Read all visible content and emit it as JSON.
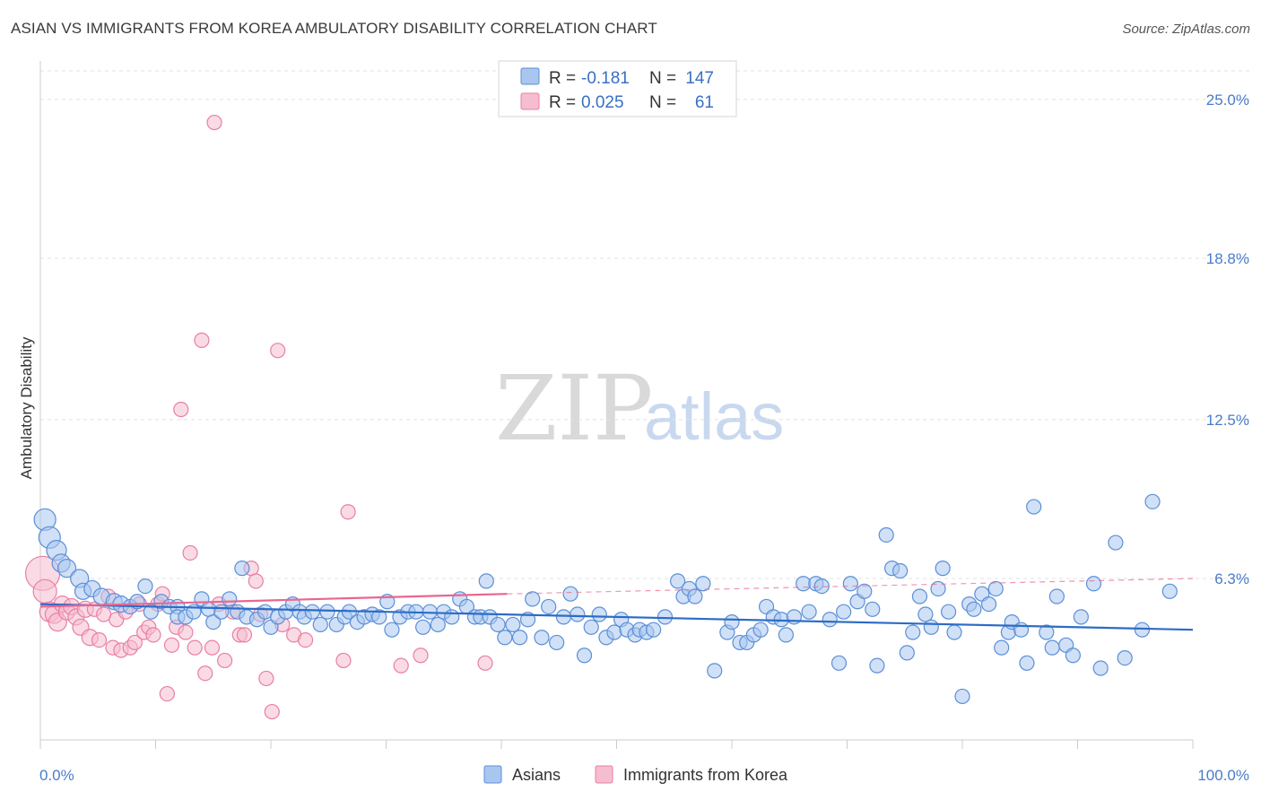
{
  "title": "ASIAN VS IMMIGRANTS FROM KOREA AMBULATORY DISABILITY CORRELATION CHART",
  "source": "Source: ZipAtlas.com",
  "watermark": {
    "zip": "ZIP",
    "atlas": "atlas"
  },
  "colors": {
    "asians_fill": "#a9c6ef",
    "asians_stroke": "#5b8fd8",
    "asians_line": "#2d6cc6",
    "korea_fill": "#f6bdd0",
    "korea_stroke": "#e87fa3",
    "korea_line": "#e8678f",
    "tick_label": "#4a7cc9",
    "grid": "#e2e2e2"
  },
  "legend": {
    "rows": [
      {
        "r_label": "R = ",
        "r_value": "-0.181",
        "n_label": "N = ",
        "n_value": "147"
      },
      {
        "r_label": "R = ",
        "r_value": "0.025",
        "n_label": "N = ",
        "n_value": "61"
      }
    ]
  },
  "bottom_legend": [
    "Asians",
    "Immigrants from Korea"
  ],
  "chart_data": {
    "type": "scatter",
    "title": "ASIAN VS IMMIGRANTS FROM KOREA AMBULATORY DISABILITY CORRELATION CHART",
    "xlabel": "",
    "ylabel": "Ambulatory Disability",
    "xlim": [
      0,
      100
    ],
    "ylim": [
      0,
      26.5
    ],
    "x_tick_labels": [
      "0.0%",
      "100.0%"
    ],
    "y_ticks": [
      6.3,
      12.5,
      18.8,
      25.0
    ],
    "y_tick_labels": [
      "6.3%",
      "12.5%",
      "18.8%",
      "25.0%"
    ],
    "grid": "horizontal dashed",
    "legend_position": "top-center",
    "series": [
      {
        "name": "Asians",
        "R": -0.181,
        "N": 147,
        "trend": {
          "x": [
            0,
            100
          ],
          "y": [
            5.3,
            4.3
          ],
          "style": "solid"
        },
        "points": [
          [
            0.4,
            8.6,
            1.2
          ],
          [
            0.8,
            7.9,
            1.2
          ],
          [
            1.4,
            7.4,
            1.1
          ],
          [
            1.8,
            6.9,
            1.0
          ],
          [
            2.3,
            6.7,
            1.0
          ],
          [
            3.4,
            6.3,
            1.0
          ],
          [
            3.7,
            5.8,
            0.9
          ],
          [
            4.5,
            5.9,
            0.9
          ],
          [
            5.3,
            5.6,
            0.9
          ],
          [
            6.4,
            5.4,
            0.9
          ],
          [
            7.0,
            5.3,
            0.9
          ],
          [
            7.8,
            5.2,
            0.8
          ],
          [
            8.4,
            5.4,
            0.8
          ],
          [
            9.1,
            6.0,
            0.8
          ],
          [
            9.6,
            5.0,
            0.8
          ],
          [
            10.5,
            5.4,
            0.8
          ],
          [
            11.2,
            5.2,
            0.8
          ],
          [
            11.9,
            5.2,
            0.8
          ],
          [
            11.9,
            4.8,
            0.8
          ],
          [
            12.6,
            4.8,
            0.8
          ],
          [
            13.3,
            5.0,
            0.8
          ],
          [
            14.0,
            5.5,
            0.8
          ],
          [
            14.6,
            5.1,
            0.8
          ],
          [
            15.0,
            4.6,
            0.8
          ],
          [
            15.7,
            5.0,
            0.8
          ],
          [
            16.4,
            5.5,
            0.8
          ],
          [
            17.1,
            5.0,
            0.8
          ],
          [
            17.5,
            6.7,
            0.8
          ],
          [
            17.9,
            4.8,
            0.8
          ],
          [
            18.8,
            4.7,
            0.8
          ],
          [
            19.5,
            5.0,
            0.8
          ],
          [
            20.0,
            4.4,
            0.8
          ],
          [
            20.6,
            4.8,
            0.8
          ],
          [
            21.3,
            5.0,
            0.8
          ],
          [
            21.9,
            5.3,
            0.8
          ],
          [
            22.5,
            5.0,
            0.8
          ],
          [
            22.9,
            4.8,
            0.8
          ],
          [
            23.6,
            5.0,
            0.8
          ],
          [
            24.3,
            4.5,
            0.8
          ],
          [
            24.9,
            5.0,
            0.8
          ],
          [
            25.7,
            4.5,
            0.8
          ],
          [
            26.4,
            4.8,
            0.8
          ],
          [
            26.8,
            5.0,
            0.8
          ],
          [
            27.5,
            4.6,
            0.8
          ],
          [
            28.1,
            4.8,
            0.8
          ],
          [
            28.8,
            4.9,
            0.8
          ],
          [
            29.4,
            4.8,
            0.8
          ],
          [
            30.1,
            5.4,
            0.8
          ],
          [
            30.5,
            4.3,
            0.8
          ],
          [
            31.2,
            4.8,
            0.8
          ],
          [
            31.9,
            5.0,
            0.8
          ],
          [
            32.6,
            5.0,
            0.8
          ],
          [
            33.2,
            4.4,
            0.8
          ],
          [
            33.8,
            5.0,
            0.8
          ],
          [
            34.5,
            4.5,
            0.8
          ],
          [
            35.0,
            5.0,
            0.8
          ],
          [
            35.7,
            4.8,
            0.8
          ],
          [
            36.4,
            5.5,
            0.8
          ],
          [
            37.0,
            5.2,
            0.8
          ],
          [
            37.7,
            4.8,
            0.8
          ],
          [
            38.2,
            4.8,
            0.8
          ],
          [
            38.7,
            6.2,
            0.8
          ],
          [
            39.0,
            4.8,
            0.8
          ],
          [
            39.7,
            4.5,
            0.8
          ],
          [
            40.3,
            4.0,
            0.8
          ],
          [
            41.0,
            4.5,
            0.8
          ],
          [
            41.6,
            4.0,
            0.8
          ],
          [
            42.3,
            4.7,
            0.8
          ],
          [
            42.7,
            5.5,
            0.8
          ],
          [
            43.5,
            4.0,
            0.8
          ],
          [
            44.1,
            5.2,
            0.8
          ],
          [
            44.8,
            3.8,
            0.8
          ],
          [
            45.4,
            4.8,
            0.8
          ],
          [
            46.0,
            5.7,
            0.8
          ],
          [
            46.6,
            4.9,
            0.8
          ],
          [
            47.2,
            3.3,
            0.8
          ],
          [
            47.8,
            4.4,
            0.8
          ],
          [
            48.5,
            4.9,
            0.8
          ],
          [
            49.1,
            4.0,
            0.8
          ],
          [
            49.8,
            4.2,
            0.8
          ],
          [
            50.4,
            4.7,
            0.8
          ],
          [
            50.9,
            4.3,
            0.8
          ],
          [
            51.6,
            4.1,
            0.8
          ],
          [
            52.0,
            4.3,
            0.8
          ],
          [
            52.6,
            4.2,
            0.8
          ],
          [
            53.2,
            4.3,
            0.8
          ],
          [
            54.2,
            4.8,
            0.8
          ],
          [
            55.3,
            6.2,
            0.8
          ],
          [
            55.8,
            5.6,
            0.8
          ],
          [
            56.3,
            5.9,
            0.8
          ],
          [
            56.8,
            5.6,
            0.8
          ],
          [
            57.5,
            6.1,
            0.8
          ],
          [
            58.5,
            2.7,
            0.8
          ],
          [
            59.6,
            4.2,
            0.8
          ],
          [
            60.0,
            4.6,
            0.8
          ],
          [
            60.7,
            3.8,
            0.8
          ],
          [
            61.3,
            3.8,
            0.8
          ],
          [
            61.9,
            4.1,
            0.8
          ],
          [
            62.5,
            4.3,
            0.8
          ],
          [
            63.0,
            5.2,
            0.8
          ],
          [
            63.6,
            4.8,
            0.8
          ],
          [
            64.3,
            4.7,
            0.8
          ],
          [
            64.7,
            4.1,
            0.8
          ],
          [
            65.4,
            4.8,
            0.8
          ],
          [
            66.2,
            6.1,
            0.8
          ],
          [
            66.7,
            5.0,
            0.8
          ],
          [
            67.3,
            6.1,
            0.8
          ],
          [
            67.8,
            6.0,
            0.8
          ],
          [
            68.5,
            4.7,
            0.8
          ],
          [
            69.3,
            3.0,
            0.8
          ],
          [
            69.7,
            5.0,
            0.8
          ],
          [
            70.3,
            6.1,
            0.8
          ],
          [
            70.9,
            5.4,
            0.8
          ],
          [
            71.5,
            5.8,
            0.8
          ],
          [
            72.2,
            5.1,
            0.8
          ],
          [
            72.6,
            2.9,
            0.8
          ],
          [
            73.4,
            8.0,
            0.8
          ],
          [
            73.9,
            6.7,
            0.8
          ],
          [
            74.6,
            6.6,
            0.8
          ],
          [
            75.2,
            3.4,
            0.8
          ],
          [
            75.7,
            4.2,
            0.8
          ],
          [
            76.3,
            5.6,
            0.8
          ],
          [
            76.8,
            4.9,
            0.8
          ],
          [
            77.3,
            4.4,
            0.8
          ],
          [
            77.9,
            5.9,
            0.8
          ],
          [
            78.3,
            6.7,
            0.8
          ],
          [
            78.8,
            5.0,
            0.8
          ],
          [
            79.3,
            4.2,
            0.8
          ],
          [
            80.0,
            1.7,
            0.8
          ],
          [
            80.6,
            5.3,
            0.8
          ],
          [
            81.0,
            5.1,
            0.8
          ],
          [
            81.7,
            5.7,
            0.8
          ],
          [
            82.3,
            5.3,
            0.8
          ],
          [
            82.9,
            5.9,
            0.8
          ],
          [
            83.4,
            3.6,
            0.8
          ],
          [
            84.0,
            4.2,
            0.8
          ],
          [
            84.3,
            4.6,
            0.8
          ],
          [
            85.1,
            4.3,
            0.8
          ],
          [
            85.6,
            3.0,
            0.8
          ],
          [
            86.2,
            9.1,
            0.8
          ],
          [
            87.3,
            4.2,
            0.8
          ],
          [
            87.8,
            3.6,
            0.8
          ],
          [
            88.2,
            5.6,
            0.8
          ],
          [
            89.0,
            3.7,
            0.8
          ],
          [
            89.6,
            3.3,
            0.8
          ],
          [
            90.3,
            4.8,
            0.8
          ],
          [
            91.4,
            6.1,
            0.8
          ],
          [
            92.0,
            2.8,
            0.8
          ],
          [
            93.3,
            7.7,
            0.8
          ],
          [
            94.1,
            3.2,
            0.8
          ],
          [
            95.6,
            4.3,
            0.8
          ],
          [
            96.5,
            9.3,
            0.8
          ],
          [
            98.0,
            5.8,
            0.8
          ]
        ]
      },
      {
        "name": "Immigrants from Korea",
        "R": 0.025,
        "N": 61,
        "trend": {
          "x": [
            0,
            40.5
          ],
          "y": [
            5.2,
            5.7
          ],
          "style": "solid",
          "extension": {
            "x": [
              40.5,
              100
            ],
            "y": [
              5.7,
              6.3
            ],
            "style": "dashed"
          }
        },
        "points": [
          [
            0.2,
            6.5,
            1.9
          ],
          [
            0.4,
            5.8,
            1.3
          ],
          [
            0.8,
            5.0,
            1.1
          ],
          [
            1.2,
            4.9,
            1.0
          ],
          [
            1.5,
            4.6,
            1.0
          ],
          [
            1.9,
            5.3,
            0.9
          ],
          [
            2.3,
            5.0,
            0.9
          ],
          [
            2.7,
            5.2,
            0.9
          ],
          [
            3.1,
            4.8,
            0.9
          ],
          [
            3.5,
            4.4,
            0.9
          ],
          [
            3.9,
            5.1,
            0.9
          ],
          [
            4.3,
            4.0,
            0.9
          ],
          [
            4.7,
            5.1,
            0.8
          ],
          [
            5.1,
            3.9,
            0.8
          ],
          [
            5.5,
            4.9,
            0.8
          ],
          [
            5.9,
            5.6,
            0.8
          ],
          [
            6.3,
            3.6,
            0.8
          ],
          [
            6.6,
            4.7,
            0.8
          ],
          [
            7.0,
            3.5,
            0.8
          ],
          [
            7.4,
            5.0,
            0.8
          ],
          [
            7.8,
            3.6,
            0.8
          ],
          [
            8.2,
            3.8,
            0.8
          ],
          [
            8.6,
            5.3,
            0.8
          ],
          [
            9.0,
            4.2,
            0.8
          ],
          [
            9.4,
            4.4,
            0.8
          ],
          [
            9.8,
            4.1,
            0.8
          ],
          [
            10.2,
            5.3,
            0.8
          ],
          [
            10.6,
            5.7,
            0.8
          ],
          [
            11.0,
            1.8,
            0.8
          ],
          [
            11.4,
            3.7,
            0.8
          ],
          [
            11.8,
            4.4,
            0.8
          ],
          [
            12.2,
            12.9,
            0.8
          ],
          [
            12.6,
            4.2,
            0.8
          ],
          [
            13.0,
            7.3,
            0.8
          ],
          [
            13.4,
            3.6,
            0.8
          ],
          [
            14.0,
            15.6,
            0.8
          ],
          [
            14.3,
            2.6,
            0.8
          ],
          [
            14.9,
            3.6,
            0.8
          ],
          [
            15.5,
            5.3,
            0.8
          ],
          [
            16.0,
            3.1,
            0.8
          ],
          [
            16.7,
            5.0,
            0.8
          ],
          [
            15.1,
            24.1,
            0.8
          ],
          [
            17.3,
            4.1,
            0.8
          ],
          [
            17.7,
            4.1,
            0.8
          ],
          [
            18.3,
            6.7,
            0.8
          ],
          [
            18.7,
            6.2,
            0.8
          ],
          [
            19.1,
            4.9,
            0.8
          ],
          [
            19.6,
            2.4,
            0.8
          ],
          [
            20.1,
            1.1,
            0.8
          ],
          [
            20.6,
            15.2,
            0.8
          ],
          [
            21.0,
            4.5,
            0.8
          ],
          [
            22.0,
            4.1,
            0.8
          ],
          [
            23.0,
            3.9,
            0.8
          ],
          [
            26.7,
            8.9,
            0.8
          ],
          [
            26.3,
            3.1,
            0.8
          ],
          [
            31.3,
            2.9,
            0.8
          ],
          [
            33.0,
            3.3,
            0.8
          ],
          [
            38.6,
            3.0,
            0.8
          ]
        ]
      }
    ]
  }
}
